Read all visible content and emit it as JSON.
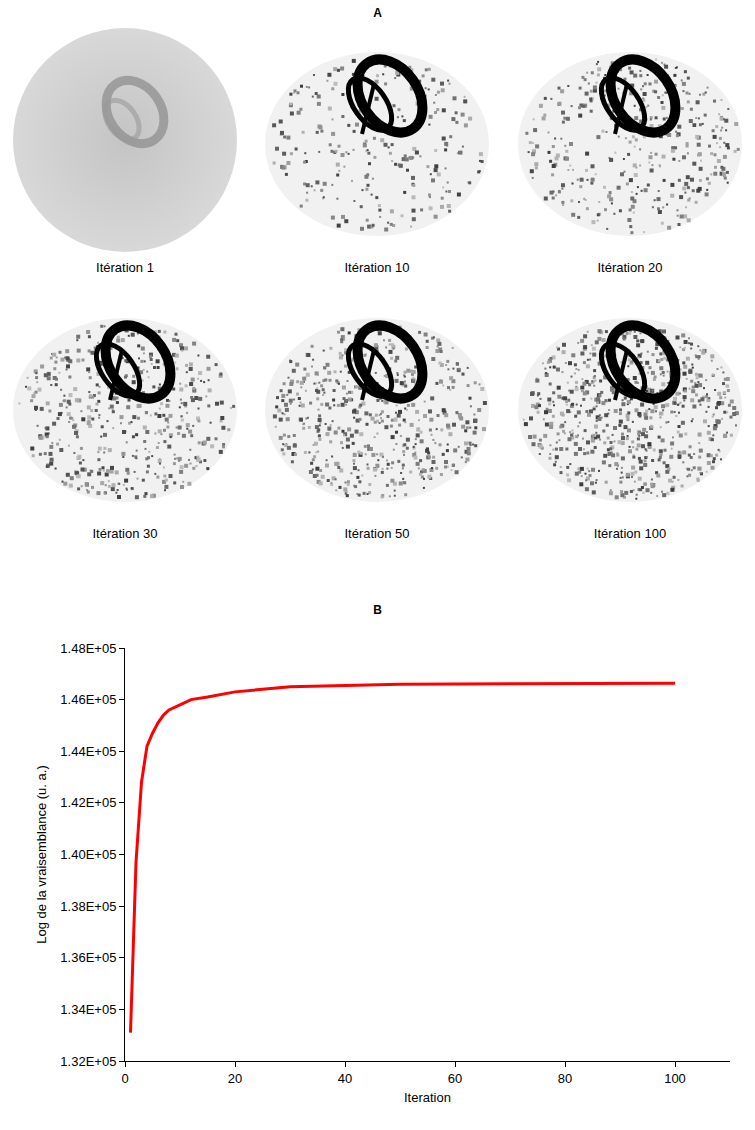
{
  "panel_a": {
    "title": "A",
    "images": [
      "Itération 1",
      "Itération 10",
      "Itération 20",
      "Itération 30",
      "Itération 50",
      "Itération 100"
    ]
  },
  "chart_data": {
    "type": "line",
    "title": "B",
    "x_label": "Iteration",
    "y_label": "Log de la vraisemblance (u. a.)",
    "x": [
      1,
      2,
      3,
      4,
      5,
      6,
      7,
      8,
      10,
      12,
      15,
      20,
      25,
      30,
      40,
      50,
      60,
      80,
      100
    ],
    "series": [
      {
        "name": "Log de la vraisemblance",
        "color": "#ff0000",
        "values": [
          133100,
          139700,
          142800,
          144200,
          144700,
          145100,
          145400,
          145600,
          145800,
          146000,
          146100,
          146300,
          146400,
          146500,
          146550,
          146600,
          146610,
          146620,
          146630
        ]
      }
    ],
    "xlim": [
      0,
      110
    ],
    "xticks": [
      0,
      20,
      40,
      60,
      80,
      100
    ],
    "ylim": [
      132000,
      148000
    ],
    "yticks": [
      {
        "value": 132000,
        "label": "1.32E+05"
      },
      {
        "value": 134000,
        "label": "1.34E+05"
      },
      {
        "value": 136000,
        "label": "1.36E+05"
      },
      {
        "value": 138000,
        "label": "1.38E+05"
      },
      {
        "value": 140000,
        "label": "1.40E+05"
      },
      {
        "value": 142000,
        "label": "1.42E+05"
      },
      {
        "value": 144000,
        "label": "1.44E+05"
      },
      {
        "value": 146000,
        "label": "1.46E+05"
      },
      {
        "value": 148000,
        "label": "1.48E+05"
      }
    ],
    "grid": false
  }
}
